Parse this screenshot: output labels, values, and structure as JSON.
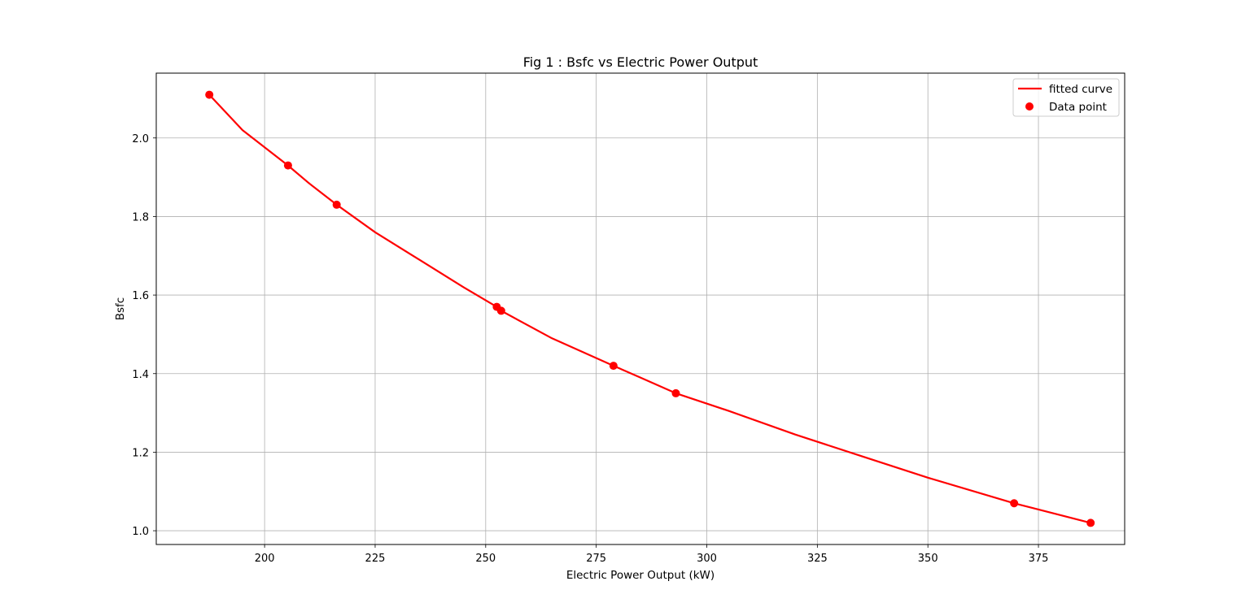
{
  "chart_data": {
    "type": "line",
    "title": "Fig 1 : Bsfc vs Electric Power Output",
    "xlabel": "Electric Power Output (kW)",
    "ylabel": "Bsfc",
    "xlim": [
      175.5,
      394.5
    ],
    "ylim": [
      0.965,
      2.165
    ],
    "xticks": [
      200,
      225,
      250,
      275,
      300,
      325,
      350,
      375
    ],
    "xtick_labels": [
      "200",
      "225",
      "250",
      "275",
      "300",
      "325",
      "350",
      "375"
    ],
    "yticks": [
      1.0,
      1.2,
      1.4,
      1.6,
      1.8,
      2.0
    ],
    "ytick_labels": [
      "1.0",
      "1.2",
      "1.4",
      "1.6",
      "1.8",
      "2.0"
    ],
    "grid": true,
    "legend_position": "top-right",
    "series": [
      {
        "name": "fitted curve",
        "style": "line",
        "color": "#ff0000",
        "x": [
          187.5,
          195,
          205.3,
          210,
          216.3,
          225,
          235,
          245,
          252.5,
          253.5,
          265,
          278.9,
          285,
          293,
          305,
          320,
          335,
          350,
          369.5,
          386.8
        ],
        "y": [
          2.11,
          2.02,
          1.93,
          1.885,
          1.83,
          1.76,
          1.69,
          1.62,
          1.57,
          1.56,
          1.49,
          1.42,
          1.39,
          1.35,
          1.305,
          1.245,
          1.19,
          1.135,
          1.07,
          1.02
        ]
      },
      {
        "name": "Data point",
        "style": "scatter",
        "color": "#ff0000",
        "x": [
          187.5,
          205.3,
          216.3,
          252.5,
          253.5,
          278.9,
          293.0,
          369.5,
          386.8
        ],
        "y": [
          2.11,
          1.93,
          1.83,
          1.57,
          1.56,
          1.42,
          1.35,
          1.07,
          1.02
        ]
      }
    ]
  }
}
